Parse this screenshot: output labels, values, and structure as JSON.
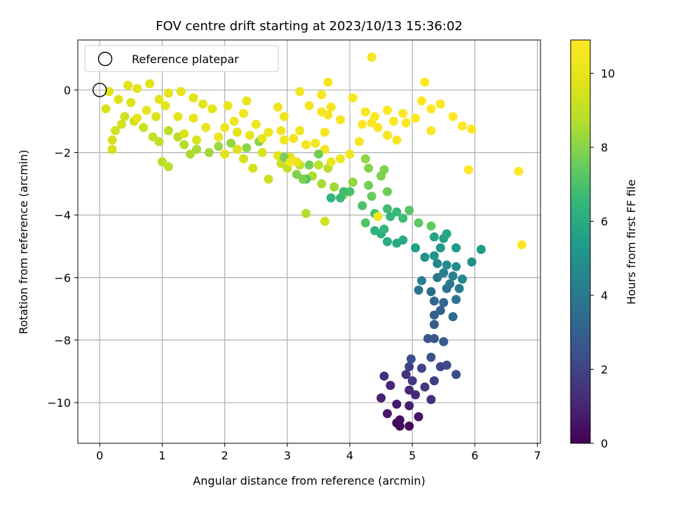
{
  "chart_data": {
    "type": "scatter",
    "title": "FOV centre drift starting at 2023/10/13 15:36:02",
    "xlabel": "Angular distance from reference (arcmin)",
    "ylabel": "Rotation from reference (arcmin)",
    "xlim": [
      -0.35,
      7.05
    ],
    "ylim": [
      -11.3,
      1.6
    ],
    "xticks": [
      "0",
      "1",
      "2",
      "3",
      "4",
      "5",
      "6",
      "7"
    ],
    "yticks": [
      "0",
      "−2",
      "−4",
      "−6",
      "−8",
      "−10"
    ],
    "grid": true,
    "legend": {
      "position": "top-left",
      "label": "Reference platepar"
    },
    "reference_point": {
      "x": 0,
      "y": 0
    },
    "colorbar": {
      "label": "Hours from first FF file",
      "min": 0,
      "max": 10.9,
      "ticks": [
        "0",
        "2",
        "4",
        "6",
        "8",
        "10"
      ],
      "colormap": "viridis"
    },
    "points": [
      [
        4.75,
        -10.65,
        0.1
      ],
      [
        4.8,
        -10.75,
        0.2
      ],
      [
        4.95,
        -10.75,
        0.3
      ],
      [
        4.8,
        -10.55,
        0.4
      ],
      [
        5.1,
        -10.45,
        0.5
      ],
      [
        4.6,
        -10.35,
        0.6
      ],
      [
        4.75,
        -10.05,
        0.7
      ],
      [
        4.95,
        -10.1,
        0.8
      ],
      [
        4.5,
        -9.85,
        0.9
      ],
      [
        4.65,
        -9.45,
        1.0
      ],
      [
        4.95,
        -9.6,
        1.1
      ],
      [
        5.05,
        -9.75,
        1.2
      ],
      [
        5.3,
        -9.9,
        1.3
      ],
      [
        4.55,
        -9.15,
        1.4
      ],
      [
        4.9,
        -9.1,
        1.5
      ],
      [
        5.0,
        -9.3,
        1.6
      ],
      [
        5.2,
        -9.5,
        1.7
      ],
      [
        5.35,
        -9.3,
        1.8
      ],
      [
        4.95,
        -8.85,
        1.9
      ],
      [
        5.15,
        -8.9,
        2.0
      ],
      [
        5.45,
        -8.85,
        2.1
      ],
      [
        5.55,
        -8.8,
        2.2
      ],
      [
        5.7,
        -9.1,
        2.3
      ],
      [
        4.98,
        -8.6,
        2.4
      ],
      [
        5.3,
        -8.55,
        2.5
      ],
      [
        5.25,
        -7.95,
        2.6
      ],
      [
        5.35,
        -7.95,
        2.7
      ],
      [
        5.5,
        -8.05,
        2.8
      ],
      [
        5.35,
        -7.5,
        2.9
      ],
      [
        5.35,
        -7.2,
        3.0
      ],
      [
        5.45,
        -7.05,
        3.1
      ],
      [
        5.5,
        -6.8,
        3.2
      ],
      [
        5.35,
        -6.75,
        3.3
      ],
      [
        5.65,
        -7.25,
        3.4
      ],
      [
        5.3,
        -6.45,
        3.5
      ],
      [
        5.55,
        -6.35,
        3.6
      ],
      [
        5.7,
        -6.7,
        3.7
      ],
      [
        5.1,
        -6.4,
        3.8
      ],
      [
        5.4,
        -6.0,
        3.9
      ],
      [
        5.6,
        -6.2,
        4.0
      ],
      [
        5.75,
        -6.35,
        4.1
      ],
      [
        5.15,
        -6.1,
        4.2
      ],
      [
        5.5,
        -5.85,
        4.3
      ],
      [
        5.65,
        -5.95,
        4.4
      ],
      [
        5.8,
        -6.05,
        4.5
      ],
      [
        5.4,
        -5.55,
        4.6
      ],
      [
        5.55,
        -5.6,
        4.7
      ],
      [
        5.7,
        -5.65,
        4.8
      ],
      [
        5.95,
        -5.5,
        4.9
      ],
      [
        5.2,
        -5.35,
        5.0
      ],
      [
        5.35,
        -5.3,
        5.1
      ],
      [
        5.45,
        -5.05,
        5.2
      ],
      [
        5.7,
        -5.05,
        5.3
      ],
      [
        6.1,
        -5.1,
        5.4
      ],
      [
        5.05,
        -5.05,
        5.5
      ],
      [
        5.5,
        -4.75,
        5.6
      ],
      [
        5.35,
        -4.7,
        5.7
      ],
      [
        5.55,
        -4.6,
        5.8
      ],
      [
        4.85,
        -4.8,
        5.9
      ],
      [
        4.75,
        -4.9,
        6.0
      ],
      [
        4.6,
        -4.85,
        6.1
      ],
      [
        4.5,
        -4.6,
        6.2
      ],
      [
        4.4,
        -4.5,
        6.3
      ],
      [
        4.55,
        -4.45,
        6.4
      ],
      [
        4.65,
        -4.05,
        6.5
      ],
      [
        4.75,
        -3.9,
        6.6
      ],
      [
        4.85,
        -4.1,
        6.7
      ],
      [
        4.6,
        -3.8,
        6.8
      ],
      [
        4.4,
        -3.95,
        6.9
      ],
      [
        4.2,
        -3.7,
        7.0
      ],
      [
        4.25,
        -4.25,
        7.1
      ],
      [
        4.95,
        -3.85,
        7.2
      ],
      [
        5.1,
        -4.25,
        7.3
      ],
      [
        5.3,
        -4.35,
        7.4
      ],
      [
        4.35,
        -3.4,
        7.5
      ],
      [
        4.6,
        -3.25,
        7.6
      ],
      [
        4.3,
        -3.05,
        7.7
      ],
      [
        4.5,
        -2.75,
        7.8
      ],
      [
        4.55,
        -2.55,
        7.9
      ],
      [
        4.3,
        -2.5,
        8.0
      ],
      [
        4.25,
        -2.2,
        8.1
      ],
      [
        4.05,
        -2.95,
        8.2
      ],
      [
        3.9,
        -3.35,
        8.3
      ],
      [
        3.75,
        -3.1,
        8.4
      ],
      [
        3.55,
        -3.0,
        8.5
      ],
      [
        3.4,
        -2.75,
        8.6
      ],
      [
        3.3,
        -3.95,
        8.7
      ],
      [
        3.65,
        -2.5,
        8.8
      ],
      [
        3.5,
        -2.4,
        8.9
      ],
      [
        3.2,
        -2.4,
        9.0
      ],
      [
        3.0,
        -2.5,
        9.1
      ],
      [
        2.9,
        -2.35,
        9.2
      ],
      [
        2.7,
        -2.85,
        9.3
      ],
      [
        2.45,
        -2.5,
        9.4
      ],
      [
        2.3,
        -2.2,
        9.5
      ],
      [
        2.6,
        -2.0,
        9.6
      ],
      [
        2.2,
        -1.9,
        9.7
      ],
      [
        2.0,
        -2.05,
        9.8
      ],
      [
        2.85,
        -2.1,
        9.9
      ],
      [
        3.05,
        -2.15,
        10.0
      ],
      [
        3.15,
        -2.3,
        10.1
      ],
      [
        3.7,
        -2.3,
        10.2
      ],
      [
        3.85,
        -2.2,
        10.3
      ],
      [
        4.0,
        -2.05,
        10.4
      ],
      [
        3.6,
        -1.9,
        10.5
      ],
      [
        3.7,
        -3.45,
        6.4
      ],
      [
        3.85,
        -3.45,
        6.6
      ],
      [
        3.9,
        -3.25,
        6.8
      ],
      [
        4.0,
        -3.25,
        6.9
      ],
      [
        3.3,
        -2.85,
        7.0
      ],
      [
        3.5,
        -2.05,
        7.6
      ],
      [
        3.35,
        -2.4,
        7.7
      ],
      [
        3.25,
        -2.85,
        7.8
      ],
      [
        3.15,
        -2.7,
        7.9
      ],
      [
        2.95,
        -2.15,
        7.8
      ],
      [
        2.55,
        -1.65,
        8.0
      ],
      [
        2.35,
        -1.85,
        8.1
      ],
      [
        2.1,
        -1.7,
        8.2
      ],
      [
        1.9,
        -1.8,
        8.3
      ],
      [
        1.75,
        -2.0,
        8.4
      ],
      [
        1.55,
        -1.9,
        8.5
      ],
      [
        1.45,
        -2.05,
        8.6
      ],
      [
        1.35,
        -1.75,
        8.7
      ],
      [
        1.25,
        -1.5,
        8.8
      ],
      [
        1.1,
        -1.3,
        8.9
      ],
      [
        1.0,
        -2.3,
        8.9
      ],
      [
        1.1,
        -2.45,
        8.9
      ],
      [
        0.95,
        -1.65,
        9.0
      ],
      [
        0.85,
        -1.5,
        9.1
      ],
      [
        0.7,
        -1.2,
        9.2
      ],
      [
        0.55,
        -1.0,
        9.3
      ],
      [
        0.4,
        -0.85,
        9.3
      ],
      [
        0.35,
        -1.1,
        9.4
      ],
      [
        0.25,
        -1.3,
        9.4
      ],
      [
        0.2,
        -1.6,
        9.5
      ],
      [
        0.2,
        -1.9,
        9.5
      ],
      [
        0.1,
        -0.6,
        9.6
      ],
      [
        0.3,
        -0.3,
        9.7
      ],
      [
        0.5,
        -0.4,
        9.7
      ],
      [
        0.45,
        0.15,
        9.8
      ],
      [
        0.6,
        0.05,
        9.8
      ],
      [
        0.8,
        0.2,
        9.8
      ],
      [
        0.95,
        -0.3,
        9.9
      ],
      [
        1.1,
        -0.1,
        9.9
      ],
      [
        1.3,
        -0.05,
        10.0
      ],
      [
        1.05,
        -0.5,
        10.0
      ],
      [
        0.75,
        -0.65,
        10.1
      ],
      [
        0.6,
        -0.9,
        10.1
      ],
      [
        1.25,
        -0.85,
        10.1
      ],
      [
        1.5,
        -0.9,
        10.2
      ],
      [
        1.7,
        -1.2,
        10.2
      ],
      [
        1.9,
        -1.5,
        10.3
      ],
      [
        2.0,
        -1.2,
        10.3
      ],
      [
        2.15,
        -1.0,
        10.3
      ],
      [
        2.3,
        -0.75,
        10.4
      ],
      [
        2.5,
        -1.1,
        10.4
      ],
      [
        2.7,
        -1.35,
        10.4
      ],
      [
        2.95,
        -1.6,
        10.4
      ],
      [
        2.9,
        -1.3,
        10.4
      ],
      [
        3.1,
        -1.55,
        10.5
      ],
      [
        1.8,
        -0.6,
        10.0
      ],
      [
        1.65,
        -0.45,
        9.9
      ],
      [
        1.5,
        -0.25,
        9.9
      ],
      [
        0.15,
        -0.05,
        9.8
      ],
      [
        0.9,
        -0.85,
        9.6
      ],
      [
        1.35,
        -1.4,
        9.7
      ],
      [
        1.55,
        -1.6,
        9.6
      ],
      [
        2.2,
        -1.35,
        9.9
      ],
      [
        2.4,
        -1.45,
        10.0
      ],
      [
        2.6,
        -1.55,
        10.0
      ],
      [
        2.05,
        -0.5,
        10.1
      ],
      [
        2.35,
        -0.35,
        10.2
      ],
      [
        2.85,
        -0.55,
        10.3
      ],
      [
        2.95,
        -0.85,
        10.3
      ],
      [
        3.35,
        -0.5,
        10.4
      ],
      [
        3.2,
        -0.05,
        10.5
      ],
      [
        3.55,
        -0.7,
        10.6
      ],
      [
        3.65,
        -0.8,
        10.6
      ],
      [
        3.7,
        -0.55,
        10.6
      ],
      [
        3.55,
        -0.15,
        10.7
      ],
      [
        3.85,
        -0.95,
        10.7
      ],
      [
        4.05,
        -0.25,
        10.7
      ],
      [
        4.25,
        -0.7,
        10.7
      ],
      [
        4.4,
        -0.85,
        10.8
      ],
      [
        4.45,
        -1.2,
        10.8
      ],
      [
        4.6,
        -0.65,
        10.8
      ],
      [
        4.7,
        -1.0,
        10.8
      ],
      [
        4.85,
        -0.75,
        10.8
      ],
      [
        4.9,
        -1.05,
        10.8
      ],
      [
        5.05,
        -0.9,
        10.9
      ],
      [
        5.15,
        -0.35,
        10.9
      ],
      [
        5.3,
        -0.6,
        10.9
      ],
      [
        5.45,
        -0.45,
        10.9
      ],
      [
        5.65,
        -0.85,
        10.9
      ],
      [
        5.8,
        -1.15,
        10.9
      ],
      [
        5.95,
        -1.25,
        10.9
      ],
      [
        6.7,
        -2.6,
        10.9
      ],
      [
        6.75,
        -4.95,
        10.9
      ],
      [
        5.9,
        -2.55,
        10.9
      ],
      [
        5.2,
        0.25,
        10.9
      ],
      [
        4.35,
        1.05,
        10.6
      ],
      [
        3.65,
        0.25,
        10.5
      ],
      [
        3.05,
        -2.3,
        10.5
      ],
      [
        3.3,
        -1.75,
        10.5
      ],
      [
        3.45,
        -1.7,
        10.5
      ],
      [
        3.2,
        -1.3,
        10.4
      ],
      [
        3.6,
        -4.2,
        9.3
      ],
      [
        4.45,
        -4.05,
        10.4
      ],
      [
        4.2,
        -1.1,
        10.8
      ],
      [
        4.35,
        -1.05,
        10.7
      ],
      [
        4.15,
        -1.65,
        10.6
      ],
      [
        3.6,
        -1.35,
        10.6
      ],
      [
        4.75,
        -1.6,
        10.7
      ],
      [
        4.6,
        -1.45,
        10.7
      ],
      [
        5.3,
        -1.3,
        10.8
      ]
    ]
  }
}
